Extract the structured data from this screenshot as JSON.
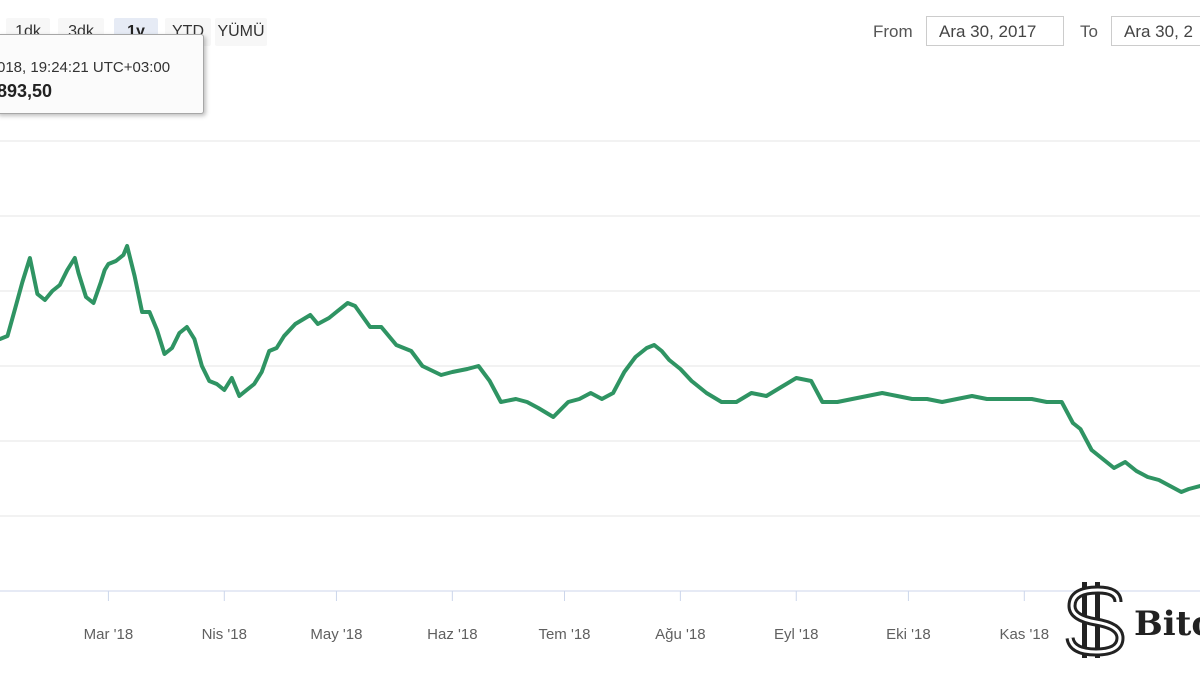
{
  "range_selector": {
    "buttons": [
      {
        "label": "1dk",
        "active": false
      },
      {
        "label": "3dk",
        "active": false
      },
      {
        "label": "1y",
        "active": true
      },
      {
        "label": "YTD",
        "active": false
      },
      {
        "label": "YÜMÜ",
        "active": false
      }
    ]
  },
  "date_range": {
    "from_label": "From",
    "from_value": "Ara 30, 2017",
    "to_label": "To",
    "to_value": "Ara 30, 2"
  },
  "tooltip": {
    "date_text": "018, 19:24:21 UTC+03:00",
    "value_text": "893,50"
  },
  "watermark": {
    "text": "Bitc"
  },
  "colors": {
    "line": "#2f9463",
    "grid": "#e6e6e6",
    "axis": "#ccd6eb",
    "tick_text": "#606060"
  },
  "chart_data": {
    "type": "line",
    "title": "",
    "xlabel": "",
    "ylabel": "",
    "x_tick_labels": [
      "Mar '18",
      "Nis '18",
      "May '18",
      "Haz '18",
      "Tem '18",
      "Ağu '18",
      "Eyl '18",
      "Eki '18",
      "Kas '18"
    ],
    "x_ticks": [
      "2018-03-01",
      "2018-04-01",
      "2018-05-01",
      "2018-06-01",
      "2018-07-01",
      "2018-08-01",
      "2018-09-01",
      "2018-10-01",
      "2018-11-01"
    ],
    "xlim": [
      "2018-01-31",
      "2018-12-18"
    ],
    "ylim": [
      0,
      17500
    ],
    "gridlines_y": [
      2500,
      5000,
      7500,
      10000,
      12500,
      15000
    ],
    "grid": true,
    "legend": "none",
    "series": [
      {
        "x": [
          "2018-01-31",
          "2018-02-02",
          "2018-02-04",
          "2018-02-06",
          "2018-02-08",
          "2018-02-10",
          "2018-02-12",
          "2018-02-14",
          "2018-02-16",
          "2018-02-18",
          "2018-02-20",
          "2018-02-21",
          "2018-02-23",
          "2018-02-25",
          "2018-02-27",
          "2018-02-28",
          "2018-03-01",
          "2018-03-03",
          "2018-03-05",
          "2018-03-06",
          "2018-03-08",
          "2018-03-10",
          "2018-03-12",
          "2018-03-14",
          "2018-03-16",
          "2018-03-18",
          "2018-03-20",
          "2018-03-22",
          "2018-03-24",
          "2018-03-26",
          "2018-03-28",
          "2018-03-30",
          "2018-04-01",
          "2018-04-03",
          "2018-04-05",
          "2018-04-07",
          "2018-04-09",
          "2018-04-11",
          "2018-04-13",
          "2018-04-15",
          "2018-04-17",
          "2018-04-20",
          "2018-04-24",
          "2018-04-26",
          "2018-04-29",
          "2018-05-01",
          "2018-05-04",
          "2018-05-06",
          "2018-05-10",
          "2018-05-13",
          "2018-05-17",
          "2018-05-21",
          "2018-05-24",
          "2018-05-29",
          "2018-06-01",
          "2018-06-05",
          "2018-06-08",
          "2018-06-11",
          "2018-06-14",
          "2018-06-18",
          "2018-06-21",
          "2018-06-24",
          "2018-06-28",
          "2018-07-02",
          "2018-07-05",
          "2018-07-08",
          "2018-07-11",
          "2018-07-14",
          "2018-07-17",
          "2018-07-20",
          "2018-07-23",
          "2018-07-25",
          "2018-07-27",
          "2018-07-29",
          "2018-08-01",
          "2018-08-04",
          "2018-08-08",
          "2018-08-12",
          "2018-08-16",
          "2018-08-20",
          "2018-08-24",
          "2018-08-28",
          "2018-09-01",
          "2018-09-05",
          "2018-09-08",
          "2018-09-12",
          "2018-09-16",
          "2018-09-20",
          "2018-09-24",
          "2018-09-28",
          "2018-10-02",
          "2018-10-06",
          "2018-10-10",
          "2018-10-14",
          "2018-10-18",
          "2018-10-22",
          "2018-10-26",
          "2018-10-30",
          "2018-11-03",
          "2018-11-07",
          "2018-11-11",
          "2018-11-14",
          "2018-11-16",
          "2018-11-19",
          "2018-11-22",
          "2018-11-25",
          "2018-11-28",
          "2018-12-01",
          "2018-12-04",
          "2018-12-07",
          "2018-12-10",
          "2018-12-13",
          "2018-12-15",
          "2018-12-18"
        ],
        "values": [
          8400,
          8500,
          9400,
          10300,
          11100,
          9900,
          9700,
          10000,
          10200,
          10700,
          11100,
          10600,
          9800,
          9600,
          10300,
          10700,
          10900,
          11000,
          11200,
          11500,
          10500,
          9300,
          9300,
          8700,
          7900,
          8100,
          8600,
          8800,
          8400,
          7500,
          7000,
          6900,
          6700,
          7100,
          6500,
          6700,
          6900,
          7300,
          8000,
          8100,
          8500,
          8900,
          9200,
          8900,
          9100,
          9300,
          9600,
          9500,
          8800,
          8800,
          8200,
          8000,
          7500,
          7200,
          7300,
          7400,
          7500,
          7000,
          6300,
          6400,
          6300,
          6100,
          5800,
          6300,
          6400,
          6600,
          6400,
          6600,
          7300,
          7800,
          8100,
          8200,
          8000,
          7700,
          7400,
          7000,
          6600,
          6300,
          6300,
          6600,
          6500,
          6800,
          7100,
          7000,
          6300,
          6300,
          6400,
          6500,
          6600,
          6500,
          6400,
          6400,
          6300,
          6400,
          6500,
          6400,
          6400,
          6400,
          6400,
          6300,
          6300,
          5600,
          5400,
          4700,
          4400,
          4100,
          4300,
          4000,
          3800,
          3700,
          3500,
          3300,
          3400,
          3500
        ]
      }
    ]
  }
}
